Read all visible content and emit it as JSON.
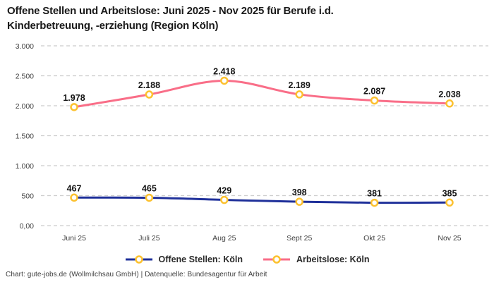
{
  "title": "Offene Stellen und Arbeitslose: Juni 2025 - Nov 2025 für Berufe i.d.\nKinderbetreuung, -erziehung (Region Köln)",
  "footer": "Chart: gute-jobs.de (Wollmilchsau GmbH) | Datenquelle: Bundesagentur für Arbeit",
  "chart_data": {
    "type": "line",
    "categories": [
      "Juni 25",
      "Juli 25",
      "Aug 25",
      "Sept 25",
      "Okt 25",
      "Nov 25"
    ],
    "series": [
      {
        "name": "Offene Stellen: Köln",
        "values": [
          467,
          465,
          429,
          398,
          381,
          385
        ],
        "labels": [
          "467",
          "465",
          "429",
          "398",
          "381",
          "385"
        ],
        "color": "#1f309a"
      },
      {
        "name": "Arbeitslose: Köln",
        "values": [
          1978,
          2188,
          2418,
          2189,
          2087,
          2038
        ],
        "labels": [
          "1.978",
          "2.188",
          "2.418",
          "2.189",
          "2.087",
          "2.038"
        ],
        "color": "#f96e88"
      }
    ],
    "marker": {
      "fill": "#ffffff",
      "stroke": "#fcc12f"
    },
    "yticks": {
      "values": [
        0,
        500,
        1000,
        1500,
        2000,
        2500,
        3000
      ],
      "labels": [
        "0,00",
        "500",
        "1.000",
        "1.500",
        "2.000",
        "2.500",
        "3.000"
      ]
    },
    "ylim": [
      0,
      3000
    ],
    "grid": "horizontal dashed",
    "gridline_color": "#cccccc",
    "legend_position": "bottom"
  }
}
